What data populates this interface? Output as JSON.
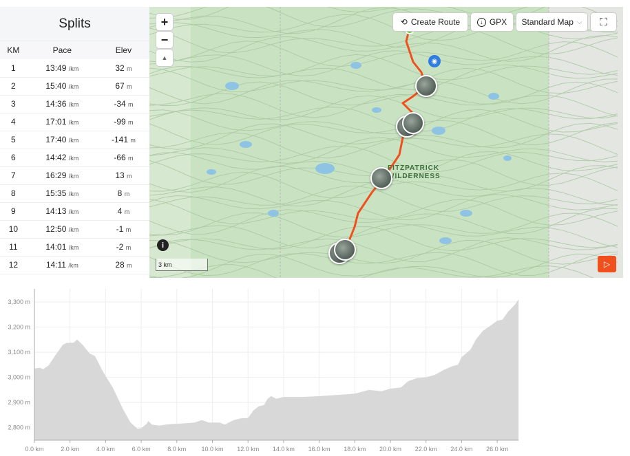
{
  "splits": {
    "title": "Splits",
    "headers": [
      "KM",
      "Pace",
      "Elev"
    ],
    "pace_unit": "/km",
    "elev_unit": "m",
    "rows": [
      [
        "1",
        "13:49",
        "32"
      ],
      [
        "2",
        "15:40",
        "67"
      ],
      [
        "3",
        "14:36",
        "-34"
      ],
      [
        "4",
        "17:01",
        "-99"
      ],
      [
        "5",
        "17:40",
        "-141"
      ],
      [
        "6",
        "14:42",
        "-66"
      ],
      [
        "7",
        "16:29",
        "13"
      ],
      [
        "8",
        "15:35",
        "8"
      ],
      [
        "9",
        "14:13",
        "4"
      ],
      [
        "10",
        "12:50",
        "-1"
      ],
      [
        "11",
        "14:01",
        "-2"
      ],
      [
        "12",
        "14:11",
        "28"
      ]
    ]
  },
  "map": {
    "zoom_in": "+",
    "zoom_out": "−",
    "compass": "▲",
    "create_route": "Create Route",
    "gpx": "GPX",
    "map_type": "Standard Map",
    "label_line1": "FITZPATRICK",
    "label_line2": "WILDERNESS",
    "scale": "3 km",
    "info": "i",
    "route_color": "#f0501e",
    "accent": "#f0501e"
  },
  "chart_data": {
    "type": "area",
    "xlabel": "",
    "ylabel": "",
    "xlim": [
      0,
      27.2
    ],
    "ylim": [
      2750,
      3350
    ],
    "x_ticks": [
      "0.0 km",
      "2.0 km",
      "4.0 km",
      "6.0 km",
      "8.0 km",
      "10.0 km",
      "12.0 km",
      "14.0 km",
      "16.0 km",
      "18.0 km",
      "20.0 km",
      "22.0 km",
      "24.0 km",
      "26.0 km"
    ],
    "y_ticks": [
      "2,800 m",
      "2,900 m",
      "3,000 m",
      "3,100 m",
      "3,200 m",
      "3,300 m"
    ],
    "grid": true,
    "fill_color": "#d8d8d8",
    "x": [
      0,
      0.3,
      0.5,
      0.8,
      1.2,
      1.6,
      1.8,
      2.2,
      2.4,
      2.7,
      3.1,
      3.4,
      3.8,
      4.0,
      4.4,
      5.0,
      5.4,
      5.8,
      6.0,
      6.3,
      6.4,
      6.6,
      7.0,
      7.5,
      8.0,
      9.0,
      9.4,
      9.8,
      10.4,
      10.7,
      11.2,
      11.6,
      12.0,
      12.3,
      12.6,
      12.9,
      13.1,
      13.3,
      13.6,
      14.0,
      15,
      16,
      17,
      18,
      18.8,
      19.5,
      20.0,
      20.6,
      21.0,
      21.5,
      22,
      22.5,
      23,
      23.5,
      23.8,
      24,
      24.5,
      24.8,
      25.2,
      25.6,
      26,
      26.3,
      26.6,
      27,
      27.2
    ],
    "y": [
      3035,
      3038,
      3033,
      3048,
      3090,
      3130,
      3137,
      3138,
      3150,
      3130,
      3095,
      3085,
      3030,
      3005,
      2960,
      2870,
      2820,
      2795,
      2797,
      2815,
      2826,
      2812,
      2808,
      2813,
      2815,
      2820,
      2830,
      2820,
      2820,
      2812,
      2830,
      2837,
      2838,
      2868,
      2885,
      2890,
      2915,
      2925,
      2915,
      2922,
      2922,
      2925,
      2930,
      2935,
      2950,
      2945,
      2955,
      2960,
      2985,
      2997,
      3000,
      3010,
      3030,
      3045,
      3050,
      3080,
      3110,
      3150,
      3185,
      3205,
      3225,
      3230,
      3260,
      3290,
      3310
    ]
  }
}
